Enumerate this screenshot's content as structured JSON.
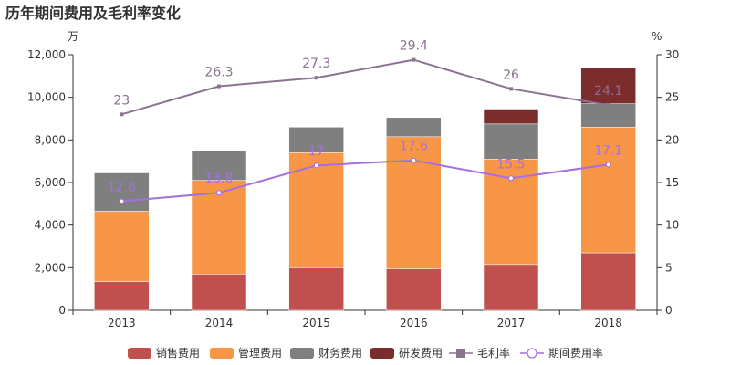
{
  "chart_data": {
    "type": "bar",
    "title": "历年期间费用及毛利率变化",
    "left_axis_unit": "万",
    "right_axis_unit": "%",
    "categories": [
      "2013",
      "2014",
      "2015",
      "2016",
      "2017",
      "2018"
    ],
    "yaxis_left": {
      "range": [
        0,
        12000
      ],
      "ticks": [
        0,
        2000,
        4000,
        6000,
        8000,
        10000,
        12000
      ],
      "tick_labels": [
        "0",
        "2,000",
        "4,000",
        "6,000",
        "8,000",
        "10,000",
        "12,000"
      ]
    },
    "yaxis_right": {
      "range": [
        0,
        30
      ],
      "ticks": [
        0,
        5,
        10,
        15,
        20,
        25,
        30
      ],
      "tick_labels": [
        "0",
        "5",
        "10",
        "15",
        "20",
        "25",
        "30"
      ]
    },
    "stacked_bars": [
      {
        "name": "销售费用",
        "color": "#c0504d",
        "values": [
          1350,
          1700,
          2000,
          1950,
          2150,
          2700
        ]
      },
      {
        "name": "管理费用",
        "color": "#f79646",
        "values": [
          3300,
          4400,
          5400,
          6200,
          4950,
          5900
        ]
      },
      {
        "name": "财务费用",
        "color": "#7f7f7f",
        "values": [
          1800,
          1400,
          1200,
          900,
          1650,
          1100
        ]
      },
      {
        "name": "研发费用",
        "color": "#7b2c2c",
        "values": [
          0,
          0,
          0,
          0,
          700,
          1700
        ]
      }
    ],
    "lines": [
      {
        "name": "毛利率",
        "color": "#8c7291",
        "marker": "square",
        "values": [
          23,
          26.3,
          27.3,
          29.4,
          26,
          24.1
        ],
        "labels": [
          "23",
          "26.3",
          "27.3",
          "29.4",
          "26",
          "24.1"
        ]
      },
      {
        "name": "期间费用率",
        "color": "#a56fe3",
        "marker": "circle",
        "values": [
          12.8,
          13.8,
          17,
          17.6,
          15.5,
          17.1
        ],
        "labels": [
          "12.8",
          "13.8",
          "17",
          "17.6",
          "15.5",
          "17.1"
        ]
      }
    ],
    "legend_position": "bottom",
    "grid": false
  }
}
